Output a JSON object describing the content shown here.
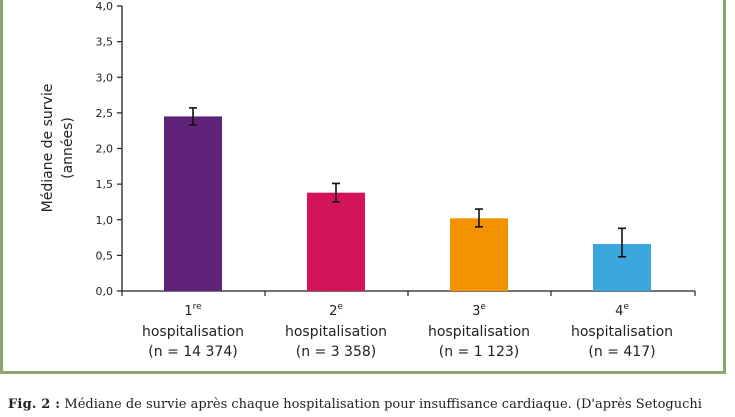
{
  "chart_data": {
    "type": "bar",
    "ylabel": "Médiane de survie",
    "ylabel2": "(années)",
    "ylim": [
      0,
      4.0
    ],
    "yticks": [
      "0,0",
      "0,5",
      "1,0",
      "1,5",
      "2,0",
      "2,5",
      "3,0",
      "3,5",
      "4,0"
    ],
    "ytick_values": [
      0,
      0.5,
      1.0,
      1.5,
      2.0,
      2.5,
      3.0,
      3.5,
      4.0
    ],
    "categories": [
      {
        "num": "1",
        "sup": "re",
        "word": "hospitalisation",
        "n": "(n = 14 374)"
      },
      {
        "num": "2",
        "sup": "e",
        "word": "hospitalisation",
        "n": "(n = 3 358)"
      },
      {
        "num": "3",
        "sup": "e",
        "word": "hospitalisation",
        "n": "(n = 1 123)"
      },
      {
        "num": "4",
        "sup": "e",
        "word": "hospitalisation",
        "n": "(n = 417)"
      }
    ],
    "values": [
      2.45,
      1.38,
      1.02,
      0.66
    ],
    "error_low": [
      2.33,
      1.25,
      0.9,
      0.48
    ],
    "error_high": [
      2.57,
      1.51,
      1.15,
      0.88
    ],
    "colors": [
      "#5e2278",
      "#d4145a",
      "#f39200",
      "#3ca7dd"
    ],
    "grid": false,
    "legend": "none"
  },
  "caption": {
    "label": "Fig. 2 :",
    "text": "Médiane de survie après chaque hospitalisation pour insuffisance cardiaque. (D'après Setoguchi"
  }
}
